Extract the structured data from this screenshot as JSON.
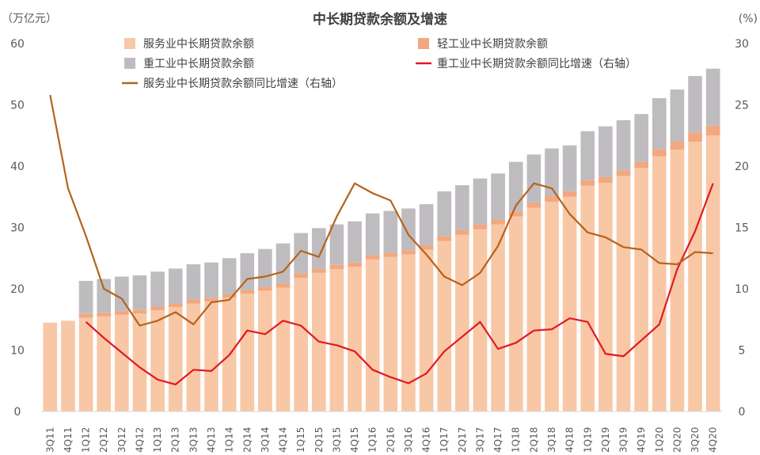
{
  "chart_data": {
    "type": "bar",
    "title": "中长期贷款余额及增速",
    "left_unit": "（万亿元）",
    "right_unit": "(%)",
    "ylim_left": [
      0,
      60
    ],
    "ylim_right": [
      0,
      30
    ],
    "yticks_left": [
      0,
      10,
      20,
      30,
      40,
      50,
      60
    ],
    "yticks_right": [
      0,
      5,
      10,
      15,
      20,
      25,
      30
    ],
    "categories": [
      "3Q11",
      "4Q11",
      "1Q12",
      "2Q12",
      "3Q12",
      "4Q12",
      "1Q13",
      "2Q13",
      "3Q13",
      "4Q13",
      "1Q14",
      "2Q14",
      "3Q14",
      "4Q14",
      "1Q15",
      "2Q15",
      "3Q15",
      "4Q15",
      "1Q16",
      "2Q16",
      "3Q16",
      "4Q16",
      "1Q17",
      "2Q17",
      "3Q17",
      "4Q17",
      "1Q18",
      "2Q18",
      "3Q18",
      "4Q18",
      "1Q19",
      "2Q19",
      "3Q19",
      "4Q19",
      "1Q20",
      "2Q20",
      "3Q20",
      "4Q20"
    ],
    "stacked_bars": [
      {
        "name": "服务业中长期贷款余额",
        "color": "#F8C7A6",
        "axis": "left",
        "values": [
          14.5,
          14.8,
          15.3,
          15.5,
          15.8,
          16.0,
          16.5,
          17.0,
          17.6,
          17.9,
          18.5,
          19.2,
          19.7,
          20.2,
          21.8,
          22.6,
          23.2,
          23.6,
          24.8,
          25.2,
          25.6,
          26.4,
          27.8,
          28.8,
          29.7,
          30.5,
          31.8,
          33.2,
          34.2,
          35.0,
          36.8,
          37.3,
          38.4,
          39.7,
          41.6,
          42.7,
          44.0,
          45.0
        ]
      },
      {
        "name": "轻工业中长期贷款余额",
        "color": "#F3A77E",
        "axis": "left",
        "values": [
          0,
          0,
          0.6,
          0.6,
          0.6,
          0.6,
          0.6,
          0.6,
          0.6,
          0.6,
          0.6,
          0.6,
          0.6,
          0.7,
          0.7,
          0.7,
          0.7,
          0.7,
          0.7,
          0.7,
          0.7,
          0.7,
          0.8,
          0.8,
          0.8,
          0.8,
          0.8,
          0.8,
          0.9,
          0.9,
          0.9,
          0.9,
          0.9,
          1.0,
          1.2,
          1.3,
          1.5,
          1.6
        ]
      },
      {
        "name": "重工业中长期贷款余额",
        "color": "#BFBCC0",
        "axis": "left",
        "values": [
          0,
          0,
          5.4,
          5.5,
          5.6,
          5.6,
          5.7,
          5.7,
          5.8,
          5.8,
          5.9,
          6.0,
          6.2,
          6.5,
          6.6,
          6.6,
          6.6,
          6.7,
          6.8,
          6.8,
          6.8,
          6.7,
          7.3,
          7.3,
          7.5,
          7.5,
          8.1,
          7.9,
          7.8,
          7.5,
          8.0,
          8.3,
          8.2,
          7.8,
          8.3,
          8.5,
          9.2,
          9.3
        ]
      }
    ],
    "lines": [
      {
        "name": "重工业中长期贷款余额同比增速（右轴）",
        "color": "#E01A22",
        "axis": "right",
        "values": [
          null,
          null,
          7.3,
          6.0,
          4.8,
          3.6,
          2.6,
          2.2,
          3.4,
          3.3,
          4.6,
          6.6,
          6.3,
          7.4,
          7.0,
          5.7,
          5.4,
          4.9,
          3.4,
          2.8,
          2.3,
          3.1,
          4.9,
          6.1,
          7.3,
          5.1,
          5.6,
          6.6,
          6.7,
          7.6,
          7.3,
          4.7,
          4.5,
          5.8,
          7.1,
          11.6,
          14.7,
          18.6
        ]
      },
      {
        "name": "服务业中长期贷款余额同比增速（右轴）",
        "color": "#B5631A",
        "axis": "right",
        "values": [
          25.8,
          18.2,
          14.3,
          10.0,
          9.2,
          7.0,
          7.4,
          8.1,
          7.1,
          8.9,
          9.1,
          10.8,
          11.0,
          11.4,
          13.1,
          12.6,
          15.9,
          18.6,
          17.8,
          17.2,
          14.4,
          12.8,
          11.0,
          10.3,
          11.3,
          13.5,
          16.8,
          18.6,
          18.2,
          16.1,
          14.6,
          14.2,
          13.4,
          13.2,
          12.1,
          12.0,
          13.0,
          12.9
        ]
      }
    ],
    "legend": [
      {
        "label": "服务业中长期贷款余额",
        "kind": "bar",
        "color": "#F8C7A6"
      },
      {
        "label": "轻工业中长期贷款余额",
        "kind": "bar",
        "color": "#F3A77E"
      },
      {
        "label": "重工业中长期贷款余额",
        "kind": "bar",
        "color": "#BFBCC0"
      },
      {
        "label": "重工业中长期贷款余额同比增速（右轴）",
        "kind": "line",
        "color": "#E01A22"
      },
      {
        "label": "服务业中长期贷款余额同比增速（右轴）",
        "kind": "line",
        "color": "#B5631A"
      }
    ]
  }
}
